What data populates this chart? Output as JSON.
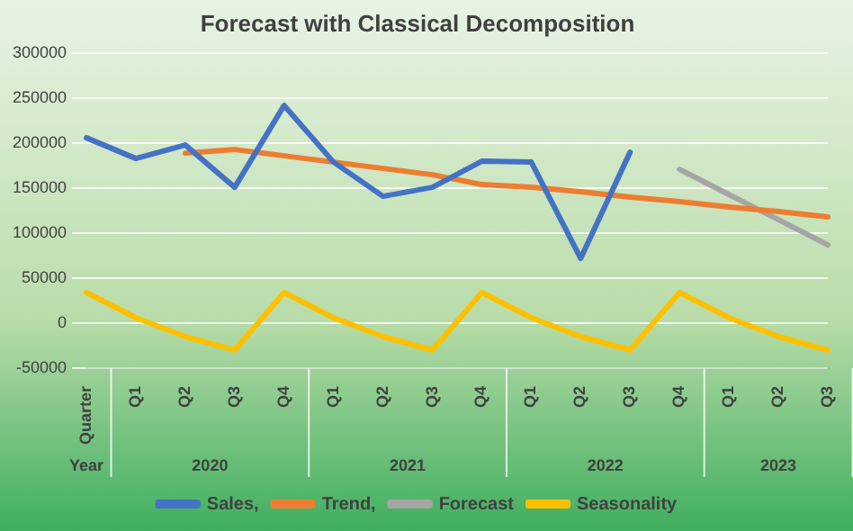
{
  "chart_data": {
    "type": "line",
    "title": "Forecast with Classical Decomposition",
    "categories": [
      "Quarter",
      "Q1",
      "Q2",
      "Q3",
      "Q4",
      "Q1",
      "Q2",
      "Q3",
      "Q4",
      "Q1",
      "Q2",
      "Q3",
      "Q4",
      "Q1",
      "Q2",
      "Q3"
    ],
    "annotations": [
      "Year",
      "2020",
      "2021",
      "2022",
      "2023"
    ],
    "series": [
      {
        "name": "Sales,",
        "color": "#4472c4",
        "values": [
          206000,
          183000,
          198000,
          151000,
          242000,
          179000,
          141000,
          151000,
          180000,
          179000,
          72000,
          190000,
          null,
          null,
          null,
          null
        ]
      },
      {
        "name": "Trend,",
        "color": "#ed7d31",
        "values": [
          null,
          null,
          189000,
          193000,
          186000,
          179000,
          172000,
          165000,
          154000,
          151000,
          146000,
          140000,
          135000,
          129000,
          124000,
          118000
        ]
      },
      {
        "name": "Forecast",
        "color": "#a5a5a5",
        "values": [
          null,
          null,
          null,
          null,
          null,
          null,
          null,
          null,
          null,
          null,
          null,
          null,
          171000,
          143000,
          115000,
          87000
        ]
      },
      {
        "name": "Seasonality",
        "color": "#ffc000",
        "values": [
          34000,
          6000,
          -15000,
          -30000,
          34000,
          6000,
          -15000,
          -30000,
          34000,
          6000,
          -15000,
          -30000,
          34000,
          6000,
          -15000,
          -30000
        ]
      }
    ],
    "ylim": [
      -50000,
      300000
    ],
    "yticks": [
      -50000,
      0,
      50000,
      100000,
      150000,
      200000,
      250000,
      300000
    ],
    "grid": "y",
    "legend": "bottom",
    "marker": "none",
    "line_style": "solid"
  }
}
